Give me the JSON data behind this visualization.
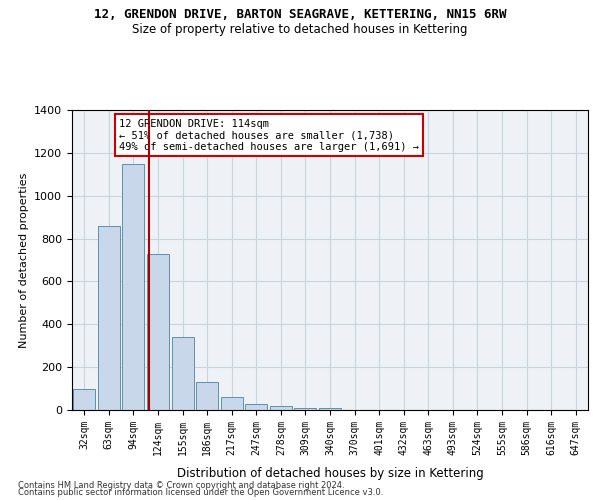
{
  "title": "12, GRENDON DRIVE, BARTON SEAGRAVE, KETTERING, NN15 6RW",
  "subtitle": "Size of property relative to detached houses in Kettering",
  "xlabel": "Distribution of detached houses by size in Kettering",
  "ylabel": "Number of detached properties",
  "categories": [
    "32sqm",
    "63sqm",
    "94sqm",
    "124sqm",
    "155sqm",
    "186sqm",
    "217sqm",
    "247sqm",
    "278sqm",
    "309sqm",
    "340sqm",
    "370sqm",
    "401sqm",
    "432sqm",
    "463sqm",
    "493sqm",
    "524sqm",
    "555sqm",
    "586sqm",
    "616sqm",
    "647sqm"
  ],
  "values": [
    100,
    860,
    1150,
    730,
    340,
    130,
    60,
    30,
    20,
    10,
    10,
    0,
    0,
    0,
    0,
    0,
    0,
    0,
    0,
    0,
    0
  ],
  "bar_color": "#c8d8ea",
  "bar_edge_color": "#6090b0",
  "vline_x_data": 2.62,
  "vline_color": "#aa0000",
  "annotation_text": "12 GRENDON DRIVE: 114sqm\n← 51% of detached houses are smaller (1,738)\n49% of semi-detached houses are larger (1,691) →",
  "annotation_box_color": "white",
  "annotation_box_edge": "#cc0000",
  "ylim": [
    0,
    1400
  ],
  "yticks": [
    0,
    200,
    400,
    600,
    800,
    1000,
    1200,
    1400
  ],
  "grid_color": "#c8d4de",
  "background_color": "#eef2f7",
  "footer1": "Contains HM Land Registry data © Crown copyright and database right 2024.",
  "footer2": "Contains public sector information licensed under the Open Government Licence v3.0."
}
